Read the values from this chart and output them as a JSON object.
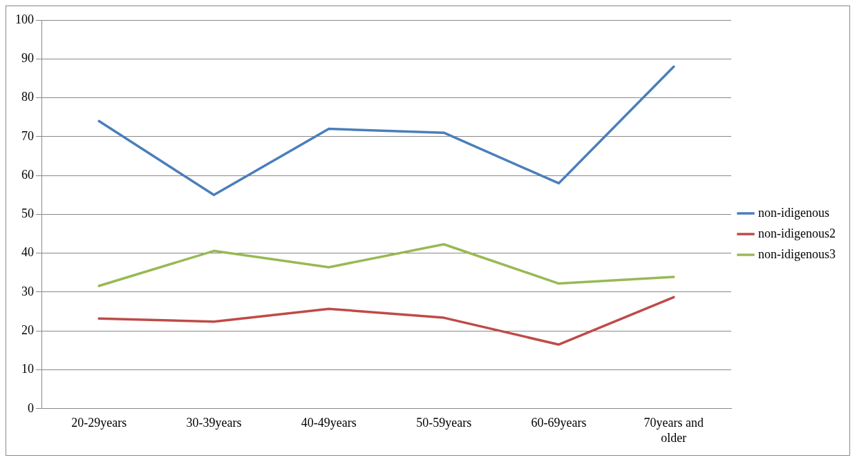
{
  "chart_data": {
    "type": "line",
    "categories": [
      "20-29years",
      "30-39years",
      "40-49years",
      "50-59years",
      "60-69years",
      "70years and older"
    ],
    "series": [
      {
        "name": "non-idigenous",
        "color": "#4a7ebb",
        "values": [
          74,
          55,
          72,
          71,
          58,
          88
        ]
      },
      {
        "name": "non-idigenous2",
        "color": "#be4b48",
        "values": [
          23.2,
          22.4,
          25.7,
          23.4,
          16.5,
          28.7
        ]
      },
      {
        "name": "non-idigenous3",
        "color": "#98b954",
        "values": [
          31.6,
          40.6,
          36.4,
          42.3,
          32.2,
          33.9
        ]
      }
    ],
    "ylim": [
      0,
      100
    ],
    "yticks": [
      0,
      10,
      20,
      30,
      40,
      50,
      60,
      70,
      80,
      90,
      100
    ],
    "grid": "y",
    "legend": "right",
    "marker": "none",
    "line_style": "solid"
  }
}
